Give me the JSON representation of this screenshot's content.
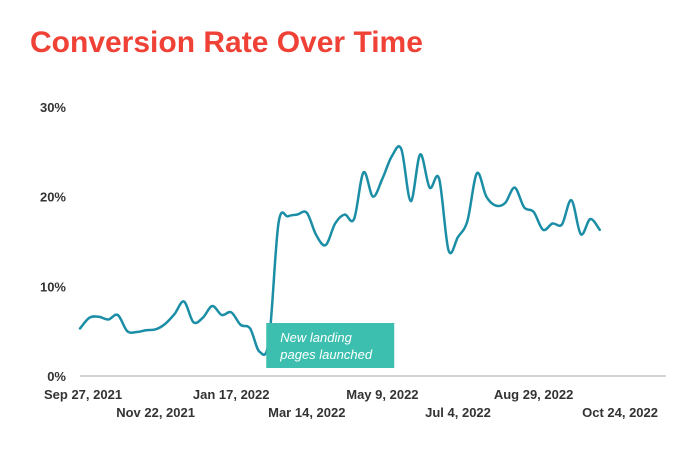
{
  "chart_data": {
    "type": "line",
    "title": "Conversion Rate Over Time",
    "ylim": [
      0,
      30
    ],
    "y_ticks": [
      0,
      10,
      20,
      30
    ],
    "y_tick_labels": [
      "0%",
      "10%",
      "20%",
      "30%"
    ],
    "x_tick_labels": [
      "Sep 27, 2021",
      "Nov 22, 2021",
      "Jan 17, 2022",
      "Mar 14, 2022",
      "May 9, 2022",
      "Jul 4, 2022",
      "Aug 29, 2022",
      "Oct 24, 2022"
    ],
    "x_tick_weeks": [
      0,
      8,
      16,
      24,
      32,
      40,
      48,
      56
    ],
    "grid": false,
    "line_color": "#1b8ea6",
    "annotation_color": "#3dbfaf",
    "annotation": {
      "lines": [
        "New landing",
        "pages launched"
      ],
      "week": 25
    },
    "series": [
      {
        "values": [
          5.3,
          6.5,
          6.6,
          6.3,
          6.8,
          5.0,
          4.9,
          5.1,
          5.2,
          5.8,
          6.9,
          8.3,
          6.0,
          6.5,
          7.8,
          6.8,
          7.1,
          5.7,
          5.3,
          2.7,
          4.0,
          17.0,
          17.8,
          18.0,
          18.2,
          15.7,
          14.6,
          17.0,
          18.0,
          17.5,
          22.7,
          20.0,
          22.0,
          24.5,
          25.3,
          19.5,
          24.7,
          21.0,
          22.0,
          14.0,
          15.5,
          17.3,
          22.6,
          20.0,
          19.0,
          19.3,
          21.0,
          18.8,
          18.3,
          16.3,
          17.0,
          16.9,
          19.6,
          15.8,
          17.5,
          16.3
        ]
      }
    ]
  }
}
